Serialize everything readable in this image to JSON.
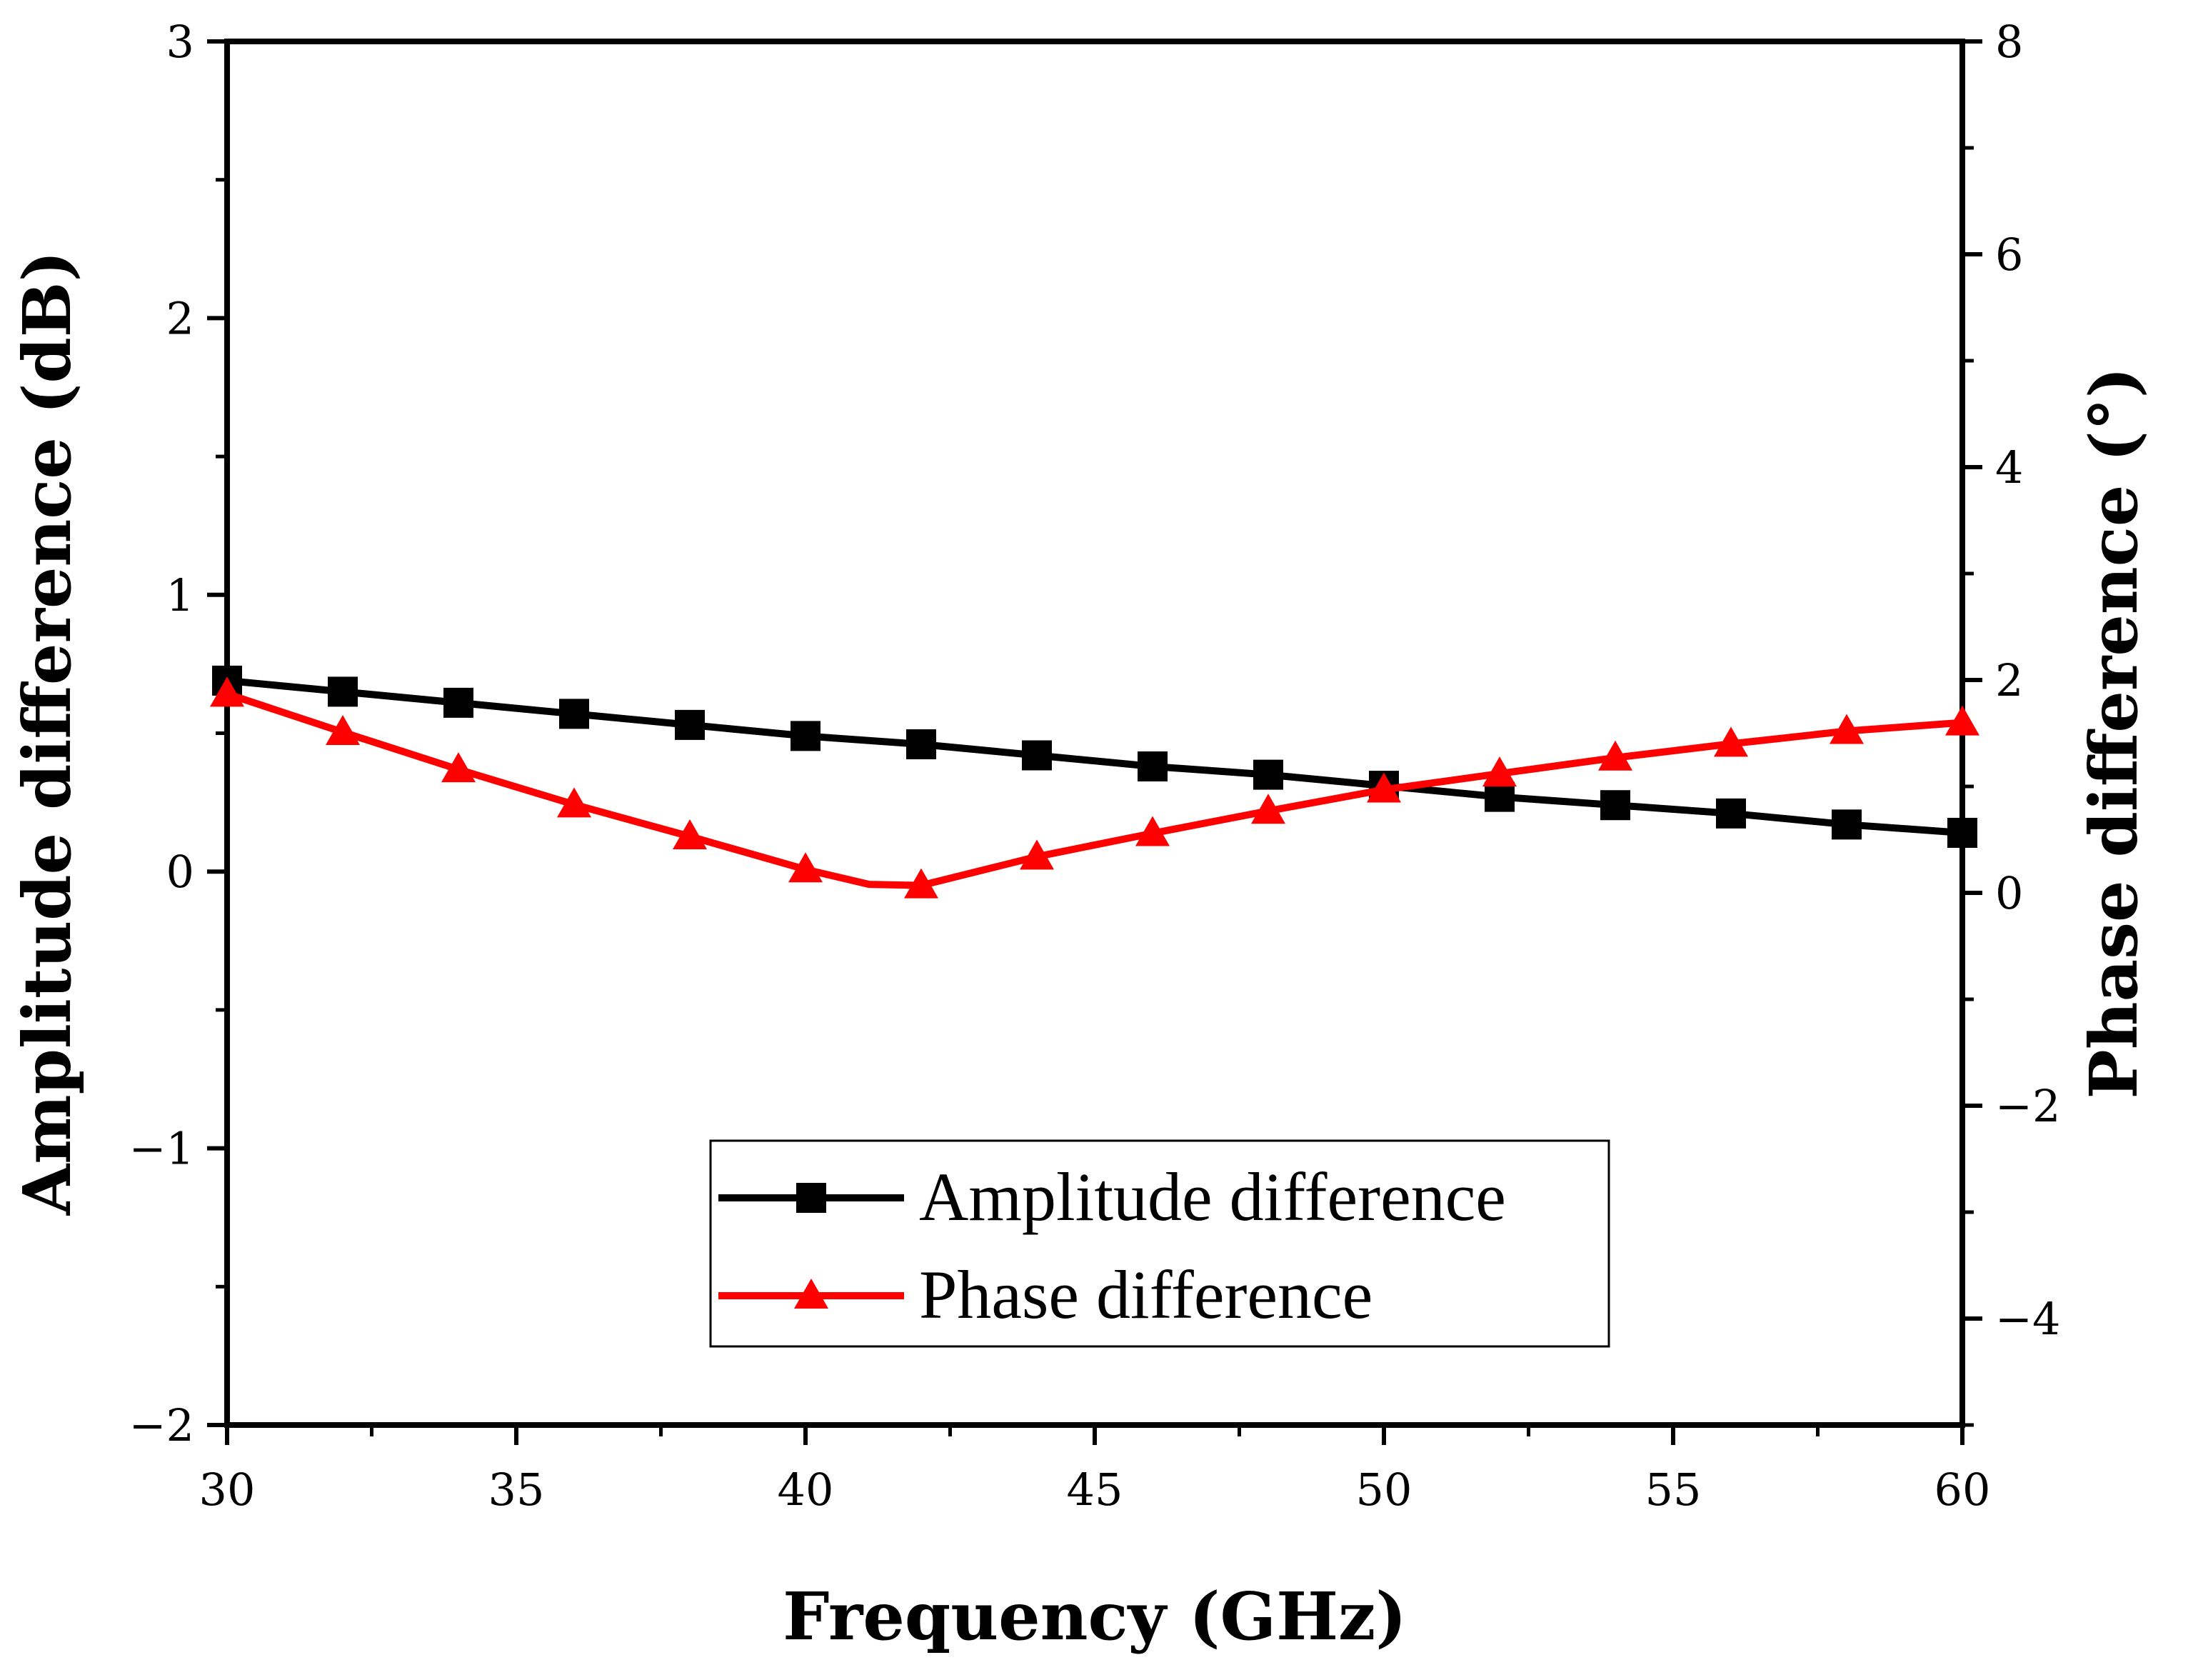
{
  "chart_data": {
    "type": "line",
    "title": "",
    "xlabel": "Frequency (GHz)",
    "ylabel": "Amplitude difference (dB)",
    "y2label": "Phase difference (°)",
    "xlim": [
      30,
      60
    ],
    "ylim": [
      -2,
      3
    ],
    "y2lim": [
      -5,
      8
    ],
    "x_ticks": [
      30,
      35,
      40,
      45,
      50,
      55,
      60
    ],
    "x_tick_labels": [
      "30",
      "35",
      "40",
      "45",
      "50",
      "55",
      "60"
    ],
    "y_ticks": [
      -2,
      -1,
      0,
      1,
      2,
      3
    ],
    "y_tick_labels": [
      "−2",
      "−1",
      "0",
      "1",
      "2",
      "3"
    ],
    "y2_ticks": [
      -4,
      -2,
      0,
      2,
      4,
      6,
      8
    ],
    "y2_tick_labels": [
      "−4",
      "−2",
      "0",
      "2",
      "4",
      "6",
      "8"
    ],
    "grid": false,
    "legend_position": "bottom-center",
    "series": [
      {
        "name": "Amplitude difference",
        "axis": "left",
        "color": "#000000",
        "marker": "square",
        "x": [
          30,
          32,
          34,
          36,
          38,
          40,
          42,
          44,
          46,
          48,
          50,
          52,
          54,
          56,
          58,
          60
        ],
        "y": [
          0.69,
          0.65,
          0.61,
          0.57,
          0.53,
          0.49,
          0.46,
          0.42,
          0.38,
          0.35,
          0.31,
          0.27,
          0.24,
          0.21,
          0.17,
          0.14
        ]
      },
      {
        "name": "Phase difference",
        "axis": "right",
        "color": "#ff0000",
        "marker": "triangle",
        "x": [
          30,
          32,
          34,
          36,
          38,
          40,
          41.1,
          42,
          44,
          46,
          48,
          50,
          52,
          54,
          56,
          58,
          60
        ],
        "y": [
          1.87,
          1.51,
          1.16,
          0.83,
          0.53,
          0.22,
          0.08,
          0.07,
          0.34,
          0.56,
          0.77,
          0.97,
          1.12,
          1.27,
          1.4,
          1.52,
          1.6
        ],
        "marker_mask": [
          true,
          true,
          true,
          true,
          true,
          true,
          false,
          true,
          true,
          true,
          true,
          true,
          true,
          true,
          true,
          true,
          true
        ]
      }
    ]
  }
}
